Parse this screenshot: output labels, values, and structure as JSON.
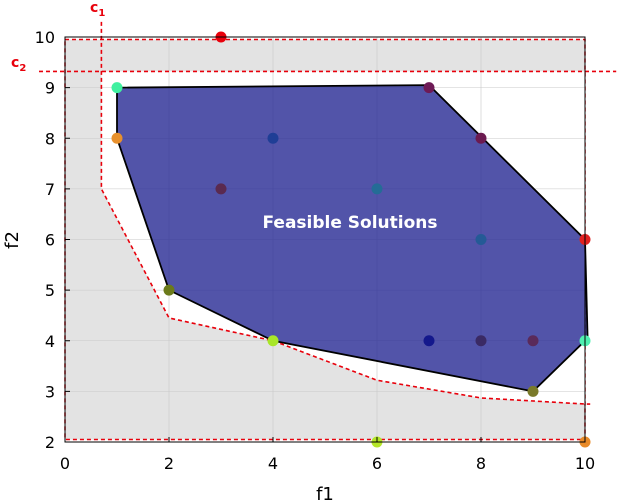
{
  "chart_data": {
    "type": "scatter",
    "title": "",
    "xlabel": "f1",
    "ylabel": "f2",
    "xlim": [
      0,
      10
    ],
    "ylim": [
      2,
      10
    ],
    "xticks": [
      "0",
      "2",
      "4",
      "6",
      "8",
      "10"
    ],
    "yticks": [
      "2",
      "3",
      "4",
      "5",
      "6",
      "7",
      "8",
      "9",
      "10"
    ],
    "grid": true,
    "region_label": "Feasible Solutions",
    "colors": {
      "feasible_fill": "#2c2e96",
      "constraint": "#e8000b",
      "infeasible_fill": "#e3e3e3"
    },
    "constraints": [
      {
        "name": "c",
        "subscript": "1",
        "boundary": [
          [
            0.7,
            10.3
          ],
          [
            0.7,
            7.0
          ],
          [
            2.0,
            4.45
          ],
          [
            4.0,
            4.0
          ],
          [
            6.0,
            3.22
          ],
          [
            8.0,
            2.87
          ],
          [
            10.0,
            2.75
          ],
          [
            10.1,
            2.75
          ]
        ]
      },
      {
        "name": "c",
        "subscript": "2",
        "boundary": [
          [
            -0.5,
            9.32
          ],
          [
            10.6,
            9.32
          ]
        ]
      }
    ],
    "infeasible_box": [
      [
        0,
        2.05
      ],
      [
        10,
        9.95
      ]
    ],
    "feasible_polygon": [
      [
        1,
        9
      ],
      [
        7,
        9.05
      ],
      [
        10,
        6
      ],
      [
        10.05,
        4.05
      ],
      [
        9,
        3
      ],
      [
        4,
        4
      ],
      [
        2,
        5
      ],
      [
        1,
        8
      ]
    ],
    "points": [
      {
        "x": 3,
        "y": 10,
        "color": "#e8000b"
      },
      {
        "x": 1,
        "y": 9,
        "color": "#40f0a0"
      },
      {
        "x": 7,
        "y": 9,
        "color": "#6e1a56"
      },
      {
        "x": 1,
        "y": 8,
        "color": "#e8902c"
      },
      {
        "x": 4,
        "y": 8,
        "color": "#1f3e96"
      },
      {
        "x": 8,
        "y": 8,
        "color": "#6b1a50"
      },
      {
        "x": 3,
        "y": 7,
        "color": "#5a2a50"
      },
      {
        "x": 6,
        "y": 7,
        "color": "#246c96"
      },
      {
        "x": 8,
        "y": 6,
        "color": "#245a96"
      },
      {
        "x": 10,
        "y": 6,
        "color": "#e02020"
      },
      {
        "x": 2,
        "y": 5,
        "color": "#6b7a1a"
      },
      {
        "x": 4,
        "y": 4,
        "color": "#a8e628"
      },
      {
        "x": 7,
        "y": 4,
        "color": "#14188c"
      },
      {
        "x": 8,
        "y": 4,
        "color": "#3a2a64"
      },
      {
        "x": 9,
        "y": 4,
        "color": "#5a2a5a"
      },
      {
        "x": 10,
        "y": 4,
        "color": "#50f0b0"
      },
      {
        "x": 9,
        "y": 3,
        "color": "#7a7a2a"
      },
      {
        "x": 6,
        "y": 2,
        "color": "#b4e628"
      },
      {
        "x": 10,
        "y": 2,
        "color": "#e88a28"
      }
    ]
  }
}
